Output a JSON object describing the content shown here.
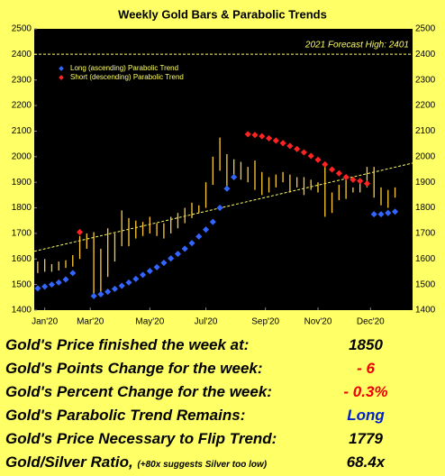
{
  "chart_data": {
    "type": "bar-range",
    "title": "Weekly Gold Bars & Parabolic Trends",
    "forecast": {
      "label": "2021 Forecast High: 2401",
      "value": 2401
    },
    "x": [
      0,
      1,
      2,
      3,
      4,
      5,
      6,
      7,
      8,
      9,
      10,
      11,
      12,
      13,
      14,
      15,
      16,
      17,
      18,
      19,
      20,
      21,
      22,
      23,
      24,
      25,
      26,
      27,
      28,
      29,
      30,
      31,
      32,
      33,
      34,
      35,
      36,
      37,
      38,
      39,
      40,
      41,
      42,
      43,
      44,
      45,
      46,
      47,
      48,
      49,
      50,
      51
    ],
    "low": [
      1545,
      1550,
      1550,
      1555,
      1565,
      1570,
      1600,
      1640,
      1450,
      1465,
      1530,
      1590,
      1650,
      1650,
      1680,
      1690,
      1700,
      1690,
      1680,
      1700,
      1720,
      1740,
      1760,
      1780,
      1800,
      1890,
      1945,
      1870,
      1910,
      1910,
      1900,
      1870,
      1850,
      1860,
      1880,
      1900,
      1860,
      1880,
      1850,
      1870,
      1860,
      1765,
      1780,
      1830,
      1835,
      1860,
      1860,
      1880,
      1840,
      1810,
      1800,
      1840
    ],
    "high": [
      1590,
      1600,
      1580,
      1590,
      1595,
      1615,
      1690,
      1700,
      1705,
      1640,
      1720,
      1700,
      1790,
      1760,
      1750,
      1745,
      1765,
      1740,
      1740,
      1765,
      1780,
      1800,
      1820,
      1810,
      1900,
      2000,
      2075,
      2010,
      1990,
      1980,
      1960,
      1985,
      1940,
      1920,
      1930,
      1940,
      1930,
      1920,
      1920,
      1910,
      1900,
      1960,
      1860,
      1890,
      1910,
      1880,
      1900,
      1960,
      1960,
      1880,
      1870,
      1880
    ],
    "bar_color": "#ffcc33",
    "series": [
      {
        "name": "Long (ascending) Parabolic Trend",
        "color": "#3366ff",
        "values": [
          1485,
          1492,
          1500,
          1508,
          1520,
          1545,
          null,
          null,
          1455,
          1462,
          1472,
          1483,
          1495,
          1508,
          1522,
          1538,
          1553,
          1568,
          1585,
          1602,
          1620,
          1640,
          1662,
          1688,
          1715,
          1745,
          1800,
          1875,
          1920,
          null,
          null,
          null,
          null,
          null,
          null,
          null,
          null,
          null,
          null,
          null,
          null,
          null,
          null,
          null,
          null,
          null,
          null,
          null,
          1775,
          1775,
          1780,
          1785
        ]
      },
      {
        "name": "Short (descending) Parabolic Trend",
        "color": "#ff2222",
        "values": [
          null,
          null,
          null,
          null,
          null,
          null,
          1705,
          null,
          null,
          null,
          null,
          null,
          null,
          null,
          null,
          null,
          null,
          null,
          null,
          null,
          null,
          null,
          null,
          null,
          null,
          null,
          null,
          null,
          null,
          null,
          2088,
          2085,
          2080,
          2072,
          2063,
          2053,
          2042,
          2030,
          2017,
          2003,
          1988,
          1970,
          1950,
          1935,
          1920,
          1910,
          1905,
          1895,
          null,
          null,
          null,
          null
        ]
      }
    ],
    "trend": {
      "x": [
        -0.5,
        53.5
      ],
      "values": [
        1630,
        1975
      ]
    },
    "xlim": [
      -0.5,
      53.5
    ],
    "xticks": [
      {
        "value": 1,
        "label": "Jan'20"
      },
      {
        "value": 7.5,
        "label": "Mar'20"
      },
      {
        "value": 16,
        "label": "May'20"
      },
      {
        "value": 24,
        "label": "Jul'20"
      },
      {
        "value": 32.5,
        "label": "Sep'20"
      },
      {
        "value": 40,
        "label": "Nov'20"
      },
      {
        "value": 47.5,
        "label": "Dec'20"
      }
    ],
    "ylim": [
      1400,
      2500
    ],
    "yticks": [
      1400,
      1500,
      1600,
      1700,
      1800,
      1900,
      2000,
      2100,
      2200,
      2300,
      2400,
      2500
    ]
  },
  "table": {
    "rows": [
      {
        "label": "Gold's Price finished the week at:",
        "value": "1850",
        "color": "#000000"
      },
      {
        "label": "Gold's Points Change for the week:",
        "value": "- 6",
        "color": "#ee0000"
      },
      {
        "label": "Gold's Percent Change for the week:",
        "value": "- 0.3%",
        "color": "#ee0000"
      },
      {
        "label": "Gold's Parabolic Trend Remains:",
        "value": "Long",
        "color": "#0022cc"
      },
      {
        "label": "Gold's Price Necessary to Flip Trend:",
        "value": "1779",
        "color": "#000000"
      },
      {
        "label": "Gold/Silver Ratio,",
        "note": "(+80x suggests Silver too low)",
        "value": "68.4x",
        "color": "#000000"
      }
    ]
  }
}
